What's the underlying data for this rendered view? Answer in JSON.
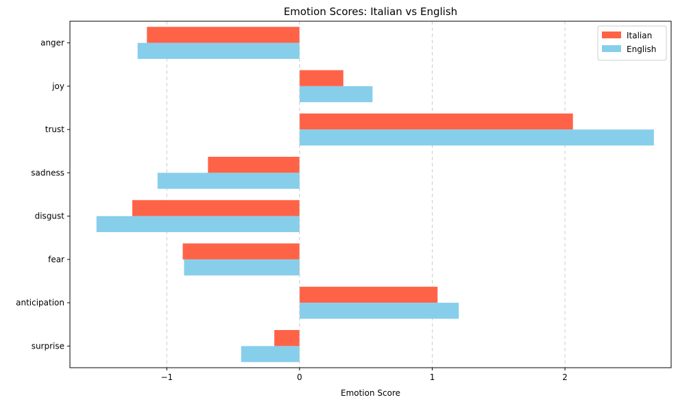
{
  "chart_data": {
    "type": "bar",
    "orientation": "horizontal",
    "title": "Emotion Scores: Italian vs English",
    "xlabel": "Emotion Score",
    "ylabel": "",
    "categories": [
      "anger",
      "joy",
      "trust",
      "sadness",
      "disgust",
      "fear",
      "anticipation",
      "surprise"
    ],
    "series": [
      {
        "name": "Italian",
        "color": "#ff6347",
        "values": [
          -1.15,
          0.33,
          2.06,
          -0.69,
          -1.26,
          -0.88,
          1.04,
          -0.19
        ]
      },
      {
        "name": "English",
        "color": "#87ceeb",
        "values": [
          -1.22,
          0.55,
          2.67,
          -1.07,
          -1.53,
          -0.87,
          1.2,
          -0.44
        ]
      }
    ],
    "xlim": [
      -1.73,
      2.8
    ],
    "xticks": [
      {
        "value": -1,
        "label": "−1"
      },
      {
        "value": 0,
        "label": "0"
      },
      {
        "value": 1,
        "label": "1"
      },
      {
        "value": 2,
        "label": "2"
      }
    ],
    "grid": "x-dashed",
    "legend": "top-right"
  }
}
